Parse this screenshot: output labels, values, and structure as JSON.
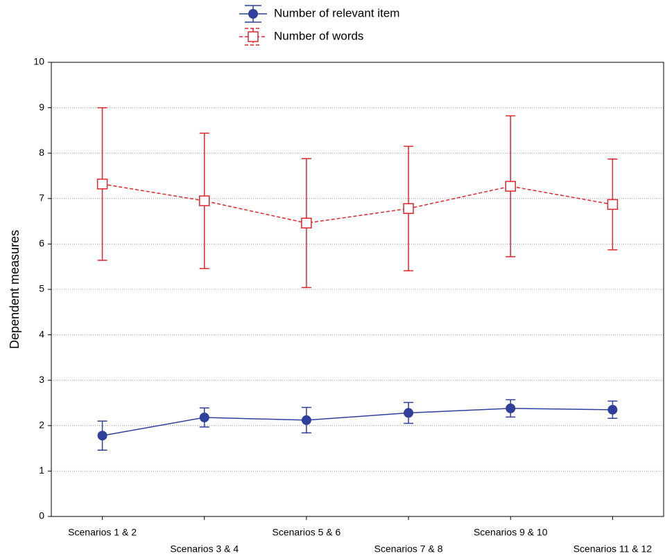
{
  "chart_data": {
    "type": "line",
    "ylabel": "Dependent measures",
    "categories": [
      "Scenarios 1 & 2",
      "Scenarios 3 & 4",
      "Scenarios 5 & 6",
      "Scenarios 7 & 8",
      "Scenarios 9 & 10",
      "Scenarios 11 & 12"
    ],
    "series": [
      {
        "name": "Number of relevant item",
        "color": "#2e3f9c",
        "marker": "circle",
        "dashed": false,
        "values": [
          1.78,
          2.18,
          2.12,
          2.28,
          2.38,
          2.35
        ],
        "errors": [
          0.32,
          0.21,
          0.28,
          0.23,
          0.19,
          0.19
        ]
      },
      {
        "name": "Number of words",
        "color": "#e0242b",
        "marker": "square",
        "dashed": true,
        "values": [
          7.32,
          6.95,
          6.46,
          6.78,
          7.27,
          6.87
        ],
        "errors": [
          1.68,
          1.49,
          1.42,
          1.37,
          1.55,
          1.0
        ]
      }
    ],
    "ylim": [
      0,
      10
    ],
    "yticks": [
      0,
      1,
      2,
      3,
      4,
      5,
      6,
      7,
      8,
      9,
      10
    ],
    "grid": true
  }
}
